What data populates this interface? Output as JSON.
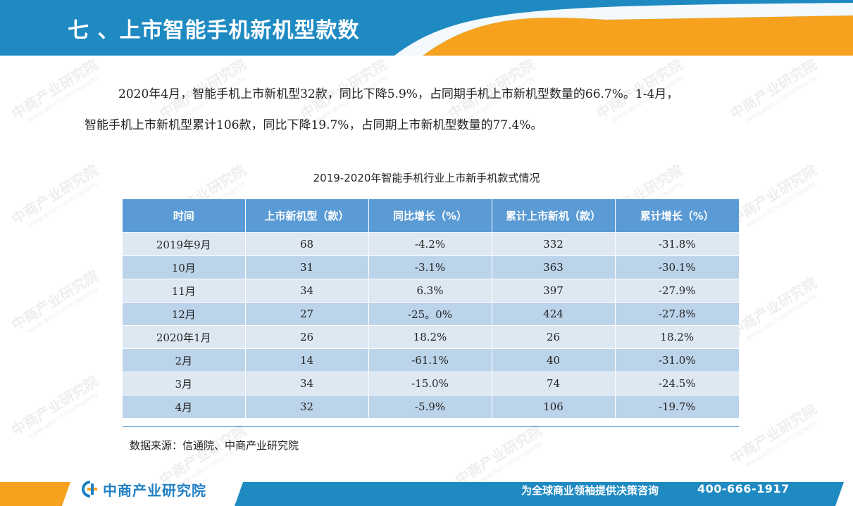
{
  "header": {
    "title": "七 、上市智能手机新机型款数"
  },
  "paragraph": {
    "line1": "2020年4月，智能手机上市新机型32款，同比下降5.9%，占同期手机上市新机型数量的66.7%。1-4月，",
    "line2": "智能手机上市新机型累计106款，同比下降19.7%，占同期上市新机型数量的77.4%。"
  },
  "table": {
    "title": "2019-2020年智能手机行业上市新手机款式情况",
    "headers": [
      "时间",
      "上市新机型（款）",
      "同比增长（%）",
      "累计上市新机（款）",
      "累计增长（%）"
    ],
    "rows": [
      [
        "2019年9月",
        "68",
        "-4.2%",
        "332",
        "-31.8%"
      ],
      [
        "10月",
        "31",
        "-3.1%",
        "363",
        "-30.1%"
      ],
      [
        "11月",
        "34",
        "6.3%",
        "397",
        "-27.9%"
      ],
      [
        "12月",
        "27",
        "-25。0%",
        "424",
        "-27.8%"
      ],
      [
        "2020年1月",
        "26",
        "18.2%",
        "26",
        "18.2%"
      ],
      [
        "2月",
        "14",
        "-61.1%",
        "40",
        "-31.0%"
      ],
      [
        "3月",
        "34",
        "-15.0%",
        "74",
        "-24.5%"
      ],
      [
        "4月",
        "32",
        "-5.9%",
        "106",
        "-19.7%"
      ]
    ],
    "source": "数据来源：信通院、中商产业研究院"
  },
  "footer": {
    "logo_text": "中商产业研究院",
    "slogan": "为全球商业领袖提供决策咨询",
    "phone": "400-666-1917"
  },
  "watermark": {
    "text": "中商产业研究院",
    "url": "www.askci.com/reports"
  },
  "colors": {
    "header_blue": "#1f8ac2",
    "header_orange": "#f6a21e",
    "table_header": "#5b9bd5",
    "row_light": "#dde8f3",
    "row_dark": "#bcd4ea"
  }
}
